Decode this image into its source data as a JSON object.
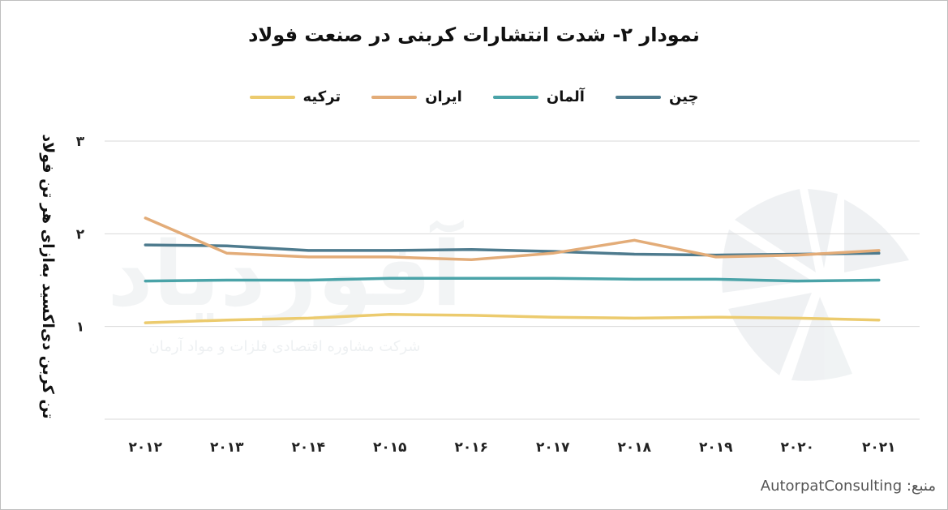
{
  "chart_data": {
    "type": "line",
    "title": "نمودار ۲- شدت انتشارات کربنی در صنعت فولاد",
    "ylabel": "تن کربن دی‌اکسید به‌ازای هر تن فولاد",
    "xlabel": "",
    "x": [
      2012,
      2013,
      2014,
      2015,
      2016,
      2017,
      2018,
      2019,
      2020,
      2021
    ],
    "x_tick_labels": [
      "۲۰۱۲",
      "۲۰۱۳",
      "۲۰۱۴",
      "۲۰۱۵",
      "۲۰۱۶",
      "۲۰۱۷",
      "۲۰۱۸",
      "۲۰۱۹",
      "۲۰۲۰",
      "۲۰۲۱"
    ],
    "ylim": [
      0,
      3
    ],
    "y_ticks": [
      1,
      2,
      3
    ],
    "y_tick_labels": [
      "۱",
      "۲",
      "۳"
    ],
    "grid": true,
    "legend_position": "top-center",
    "series": [
      {
        "name": "چین",
        "color": "#4e7b8e",
        "values": [
          1.88,
          1.87,
          1.82,
          1.82,
          1.83,
          1.81,
          1.78,
          1.77,
          1.78,
          1.79
        ]
      },
      {
        "name": "آلمان",
        "color": "#4aa3a8",
        "values": [
          1.49,
          1.5,
          1.5,
          1.52,
          1.52,
          1.52,
          1.51,
          1.51,
          1.49,
          1.5
        ]
      },
      {
        "name": "ایران",
        "color": "#e3ac78",
        "values": [
          2.17,
          1.79,
          1.75,
          1.75,
          1.72,
          1.79,
          1.93,
          1.75,
          1.77,
          1.82
        ]
      },
      {
        "name": "ترکیه",
        "color": "#eccb6e",
        "values": [
          1.04,
          1.07,
          1.09,
          1.13,
          1.12,
          1.1,
          1.09,
          1.1,
          1.09,
          1.07
        ]
      }
    ]
  },
  "watermark": {
    "logo_text": "آفوردیاد",
    "tagline": "شرکت مشاوره اقتصادی فلزات و مواد آرمان"
  },
  "source": "منبع: AutorpatConsulting"
}
